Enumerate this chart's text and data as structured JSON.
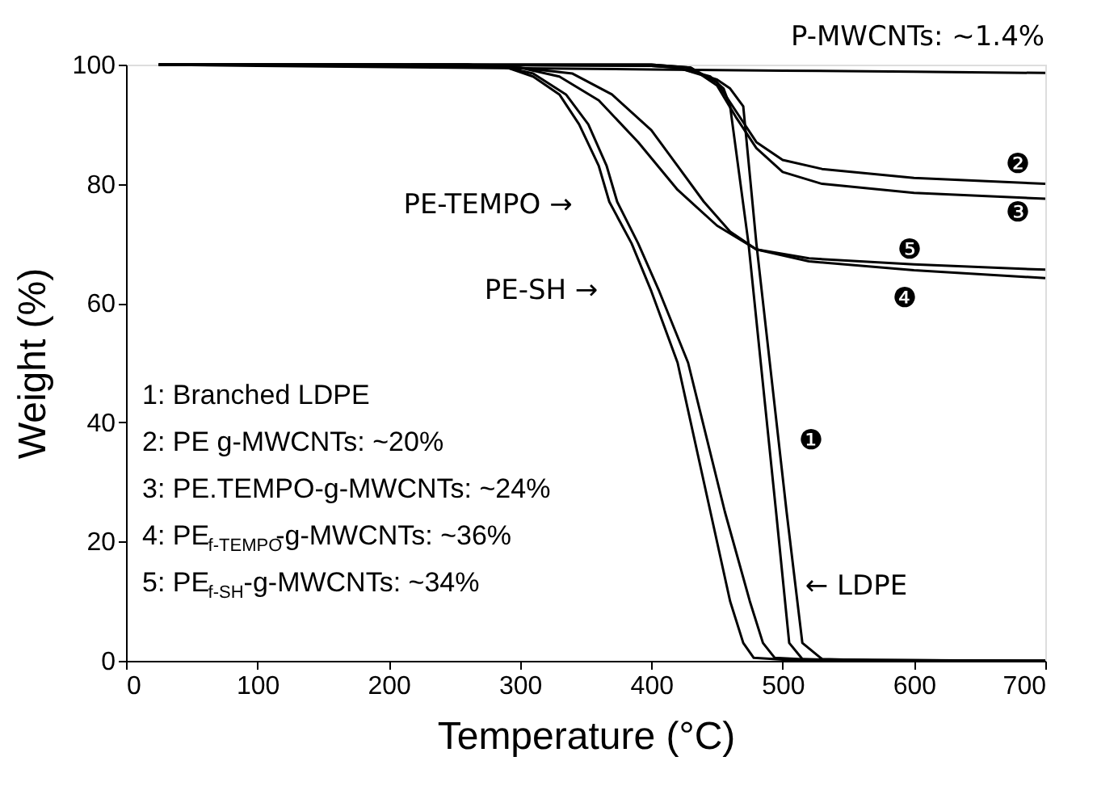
{
  "chart_data": {
    "type": "line",
    "xlabel": "Temperature (°C)",
    "ylabel": "Weight (%)",
    "xlim": [
      0,
      700
    ],
    "xticks": [
      0,
      100,
      200,
      300,
      400,
      500,
      600,
      700
    ],
    "ylim": [
      0,
      100
    ],
    "yticks": [
      0,
      20,
      40,
      60,
      80,
      100
    ],
    "grid": false,
    "legend": false,
    "marker": "none",
    "line_style": "solid",
    "series": [
      {
        "color": "#000000",
        "x": [
          25,
          100,
          200,
          300,
          400,
          500,
          600,
          700
        ],
        "values": [
          100,
          99.8,
          99.6,
          99.4,
          99.2,
          99,
          98.8,
          98.6
        ]
      },
      {
        "color": "#000000",
        "x": [
          25,
          200,
          400,
          420,
          445,
          455,
          460,
          474,
          495,
          505,
          515,
          560,
          700
        ],
        "values": [
          100,
          100,
          99.8,
          99.5,
          98,
          96,
          93,
          70,
          25,
          3,
          0.3,
          0,
          0
        ]
      },
      {
        "color": "#000000",
        "x": [
          25,
          200,
          400,
          420,
          450,
          460,
          470,
          480,
          503,
          515,
          530,
          580,
          700
        ],
        "values": [
          100,
          100,
          99.8,
          99.5,
          97.5,
          96,
          93,
          70,
          25,
          3,
          0.3,
          0,
          0
        ]
      },
      {
        "color": "#000000",
        "x": [
          25,
          200,
          400,
          430,
          450,
          465,
          480,
          500,
          530,
          600,
          700
        ],
        "values": [
          100,
          100,
          100,
          99.5,
          97,
          92,
          87,
          84,
          82.5,
          81,
          80
        ]
      },
      {
        "color": "#000000",
        "x": [
          25,
          200,
          400,
          430,
          450,
          465,
          480,
          500,
          530,
          600,
          700
        ],
        "values": [
          100,
          100,
          100,
          99.5,
          96.5,
          91,
          86,
          82,
          80,
          78.5,
          77.5
        ]
      },
      {
        "color": "#000000",
        "x": [
          25,
          200,
          300,
          330,
          360,
          390,
          420,
          450,
          480,
          520,
          600,
          700
        ],
        "values": [
          100,
          100,
          99.5,
          98,
          94,
          87,
          79,
          73,
          69,
          67,
          65.5,
          64.2
        ]
      },
      {
        "color": "#000000",
        "x": [
          25,
          200,
          300,
          340,
          370,
          400,
          420,
          440,
          460,
          480,
          520,
          600,
          700
        ],
        "values": [
          100,
          100,
          99.5,
          98.5,
          95,
          89,
          83,
          77,
          72,
          69,
          67.5,
          66.5,
          65.6
        ]
      },
      {
        "color": "#000000",
        "x": [
          25,
          200,
          260,
          290,
          310,
          330,
          345,
          360,
          368,
          385,
          400,
          420,
          445,
          460,
          470,
          478,
          500,
          700
        ],
        "values": [
          100,
          100,
          100,
          99.5,
          98,
          95,
          90,
          83,
          77,
          70,
          62,
          50,
          25,
          10,
          3,
          0.5,
          0.2,
          0
        ]
      },
      {
        "color": "#000000",
        "x": [
          25,
          200,
          260,
          290,
          310,
          335,
          352,
          366,
          374,
          390,
          406,
          428,
          456,
          475,
          485,
          494,
          520,
          700
        ],
        "values": [
          100,
          100,
          100,
          99.5,
          98.5,
          95,
          90,
          83,
          77,
          70,
          62,
          50,
          25,
          10,
          3,
          0.5,
          0.2,
          0
        ]
      }
    ],
    "annotations": [
      "P-MWCNTs: ~1.4%",
      "❶",
      "❷",
      "❸",
      "❹",
      "❺",
      "PE-TEMPO →",
      "PE-SH →",
      "← LDPE",
      "1: Branched LDPE",
      "2: PE g-MWCNTs: ~20%",
      "3: PE.TEMPO-g-MWCNTs: ~24%",
      "4: PE$_{f-TEMPO}$-g-MWCNTs: ~36%",
      "5: PE$_{f-SH}$-g-MWCNTs: ~34%"
    ]
  }
}
